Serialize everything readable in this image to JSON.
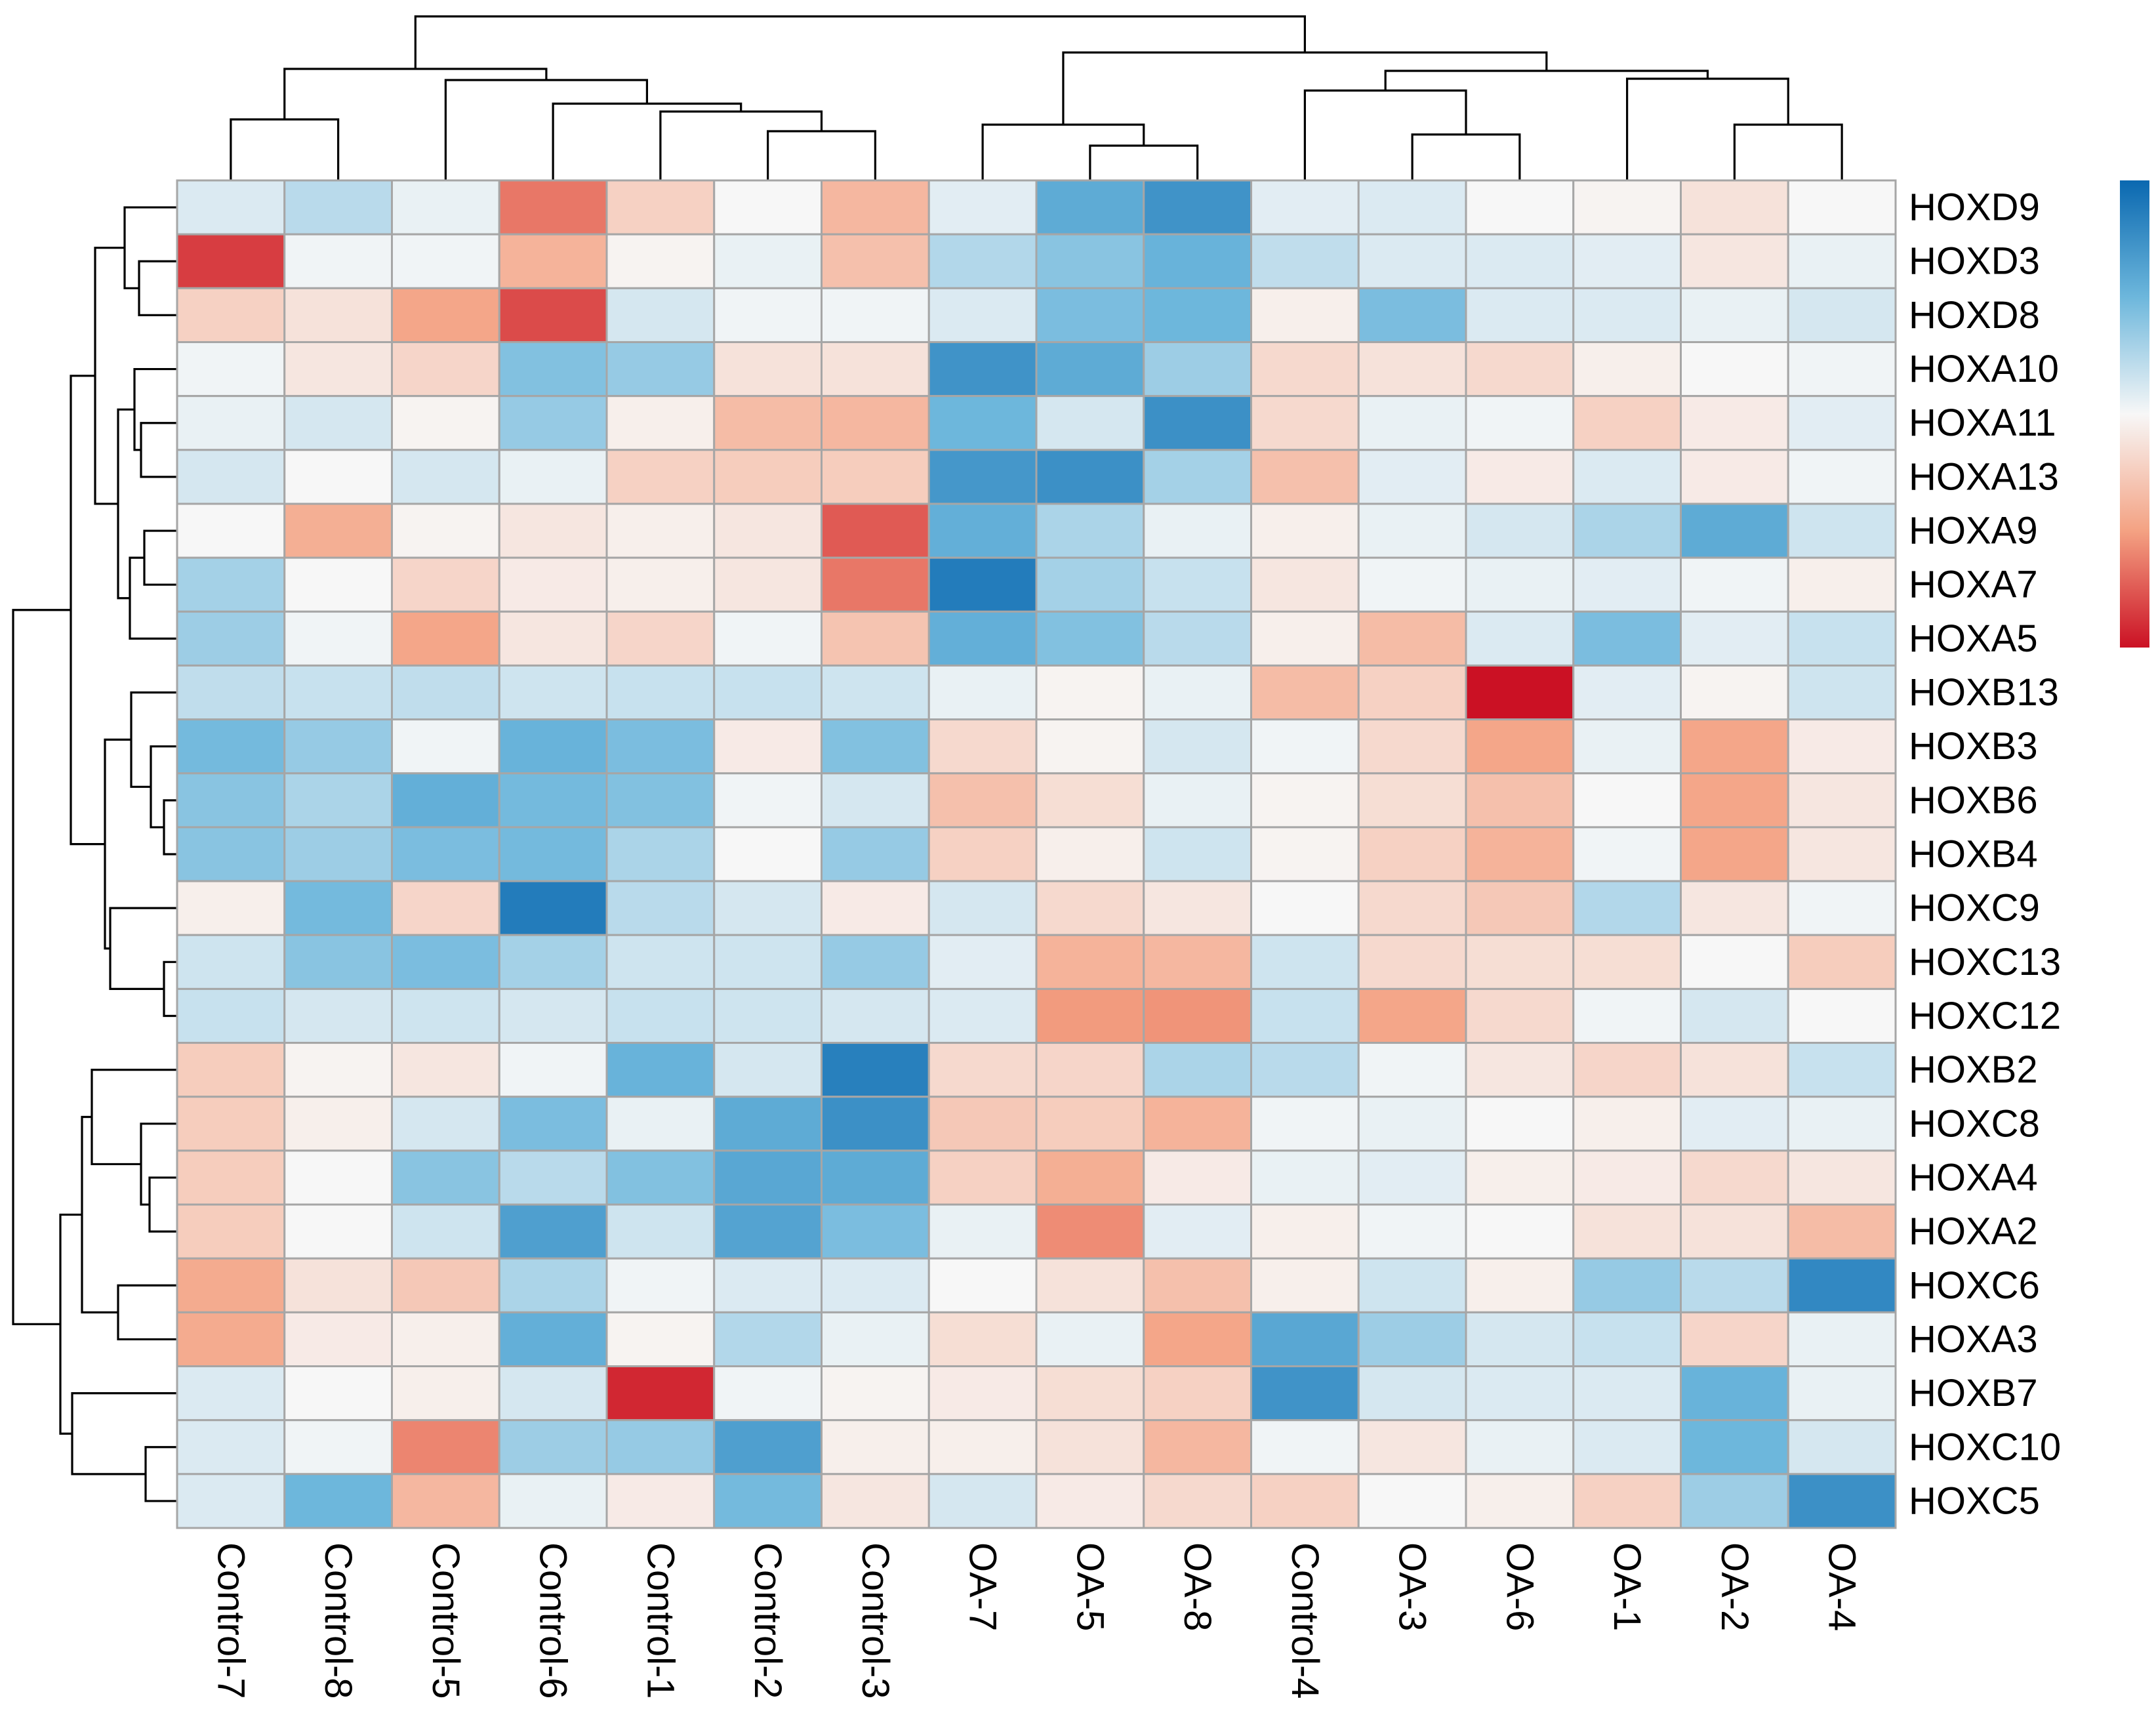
{
  "chart_data": {
    "type": "heatmap",
    "title": "",
    "rows": [
      "HOXD9",
      "HOXD3",
      "HOXD8",
      "HOXA10",
      "HOXA11",
      "HOXA13",
      "HOXA9",
      "HOXA7",
      "HOXA5",
      "HOXB13",
      "HOXB3",
      "HOXB6",
      "HOXB4",
      "HOXC9",
      "HOXC13",
      "HOXC12",
      "HOXB2",
      "HOXC8",
      "HOXA4",
      "HOXA2",
      "HOXC6",
      "HOXA3",
      "HOXB7",
      "HOXC10",
      "HOXC5"
    ],
    "columns": [
      "Control-7",
      "Control-8",
      "Control-5",
      "Control-6",
      "Control-1",
      "Control-2",
      "Control-3",
      "OA-7",
      "OA-5",
      "OA-8",
      "Control-4",
      "OA-3",
      "OA-6",
      "OA-1",
      "OA-2",
      "OA-4"
    ],
    "values": [
      [
        0.2,
        0.45,
        0.1,
        -1.3,
        -0.45,
        0.0,
        -0.75,
        0.15,
        1.15,
        1.45,
        0.15,
        0.2,
        0.0,
        -0.05,
        -0.25,
        0.0
      ],
      [
        -1.7,
        0.05,
        0.05,
        -0.8,
        -0.05,
        0.1,
        -0.65,
        0.5,
        0.8,
        1.05,
        0.4,
        0.2,
        0.2,
        0.15,
        -0.2,
        0.1
      ],
      [
        -0.45,
        -0.25,
        -0.95,
        -1.6,
        0.25,
        0.05,
        0.05,
        0.2,
        0.9,
        1.0,
        -0.1,
        0.9,
        0.2,
        0.2,
        0.1,
        0.25
      ],
      [
        0.05,
        -0.2,
        -0.4,
        0.85,
        0.7,
        -0.25,
        -0.25,
        1.45,
        1.15,
        0.65,
        -0.35,
        -0.25,
        -0.35,
        -0.1,
        0.0,
        0.05
      ],
      [
        0.1,
        0.25,
        -0.05,
        0.7,
        -0.1,
        -0.7,
        -0.75,
        1.0,
        0.25,
        1.5,
        -0.35,
        0.1,
        0.05,
        -0.45,
        -0.15,
        0.15
      ],
      [
        0.25,
        0.0,
        0.25,
        0.1,
        -0.45,
        -0.5,
        -0.5,
        1.4,
        1.5,
        0.6,
        -0.65,
        0.15,
        -0.15,
        0.2,
        -0.15,
        0.05
      ],
      [
        0.0,
        -0.85,
        -0.05,
        -0.2,
        -0.1,
        -0.2,
        -1.5,
        1.1,
        0.55,
        0.1,
        -0.1,
        0.1,
        0.25,
        0.55,
        1.15,
        0.3
      ],
      [
        0.6,
        0.0,
        -0.4,
        -0.15,
        -0.1,
        -0.2,
        -1.3,
        1.75,
        0.6,
        0.35,
        -0.2,
        0.05,
        0.1,
        0.15,
        0.05,
        -0.1
      ],
      [
        0.65,
        0.05,
        -0.95,
        -0.2,
        -0.4,
        0.05,
        -0.6,
        1.1,
        0.85,
        0.45,
        -0.1,
        -0.7,
        0.2,
        0.9,
        0.15,
        0.35
      ],
      [
        0.4,
        0.35,
        0.4,
        0.3,
        0.35,
        0.35,
        0.3,
        0.1,
        -0.05,
        0.1,
        -0.7,
        -0.45,
        -2.0,
        0.15,
        -0.05,
        0.3
      ],
      [
        0.95,
        0.7,
        0.05,
        1.05,
        0.9,
        -0.15,
        0.85,
        -0.35,
        -0.05,
        0.25,
        0.05,
        -0.35,
        -0.95,
        0.1,
        -0.95,
        -0.15
      ],
      [
        0.8,
        0.55,
        1.1,
        0.95,
        0.85,
        0.05,
        0.25,
        -0.65,
        -0.3,
        0.1,
        -0.05,
        -0.3,
        -0.65,
        0.0,
        -0.95,
        -0.2
      ],
      [
        0.8,
        0.65,
        0.9,
        0.95,
        0.55,
        0.0,
        0.7,
        -0.45,
        -0.1,
        0.3,
        -0.05,
        -0.45,
        -0.8,
        0.05,
        -0.95,
        -0.2
      ],
      [
        -0.1,
        0.95,
        -0.4,
        1.75,
        0.45,
        0.25,
        -0.15,
        0.25,
        -0.35,
        -0.2,
        0.0,
        -0.35,
        -0.55,
        0.5,
        -0.2,
        0.05
      ],
      [
        0.3,
        0.8,
        0.9,
        0.6,
        0.3,
        0.3,
        0.7,
        0.15,
        -0.8,
        -0.75,
        0.3,
        -0.35,
        -0.3,
        -0.3,
        0.0,
        -0.5
      ],
      [
        0.35,
        0.25,
        0.3,
        0.25,
        0.35,
        0.3,
        0.25,
        0.2,
        -1.05,
        -1.1,
        0.35,
        -0.95,
        -0.35,
        0.05,
        0.25,
        0.0
      ],
      [
        -0.5,
        -0.05,
        -0.2,
        0.05,
        1.05,
        0.25,
        1.7,
        -0.35,
        -0.4,
        0.55,
        0.45,
        0.05,
        -0.2,
        -0.4,
        -0.25,
        0.35
      ],
      [
        -0.5,
        -0.1,
        0.25,
        0.9,
        0.1,
        1.15,
        1.5,
        -0.55,
        -0.5,
        -0.8,
        0.05,
        0.1,
        0.0,
        -0.1,
        0.15,
        0.1
      ],
      [
        -0.5,
        0.0,
        0.8,
        0.45,
        0.85,
        1.2,
        1.15,
        -0.45,
        -0.85,
        -0.15,
        0.1,
        0.15,
        -0.1,
        -0.15,
        -0.35,
        -0.2
      ],
      [
        -0.5,
        0.0,
        0.3,
        1.3,
        0.3,
        1.25,
        0.9,
        0.1,
        -1.15,
        0.15,
        -0.1,
        0.05,
        0.0,
        -0.25,
        -0.25,
        -0.7
      ],
      [
        -0.9,
        -0.25,
        -0.55,
        0.55,
        0.05,
        0.2,
        0.2,
        0.0,
        -0.25,
        -0.65,
        -0.1,
        0.3,
        -0.1,
        0.7,
        0.45,
        1.6
      ],
      [
        -0.9,
        -0.15,
        -0.1,
        1.1,
        -0.05,
        0.5,
        0.1,
        -0.3,
        0.1,
        -0.95,
        1.2,
        0.65,
        0.25,
        0.35,
        -0.4,
        0.1
      ],
      [
        0.2,
        0.0,
        -0.1,
        0.25,
        -1.85,
        0.05,
        -0.05,
        -0.15,
        -0.3,
        -0.45,
        1.45,
        0.25,
        0.2,
        0.2,
        1.05,
        0.1
      ],
      [
        0.2,
        0.05,
        -1.2,
        0.65,
        0.7,
        1.3,
        -0.1,
        -0.1,
        -0.25,
        -0.75,
        0.05,
        -0.2,
        0.1,
        0.2,
        1.0,
        0.25
      ],
      [
        0.2,
        1.0,
        -0.75,
        0.1,
        -0.15,
        0.95,
        -0.2,
        0.25,
        -0.15,
        -0.35,
        -0.45,
        0.0,
        -0.1,
        -0.45,
        0.65,
        1.5
      ]
    ],
    "color_scale": {
      "low_color": "#cb1124",
      "mid_color": "#f7f7f7",
      "high_color": "#0a68b0",
      "range": [
        -2,
        2
      ],
      "legend_placement": "top-right"
    },
    "column_dendrogram": "top",
    "row_dendrogram": "left"
  }
}
